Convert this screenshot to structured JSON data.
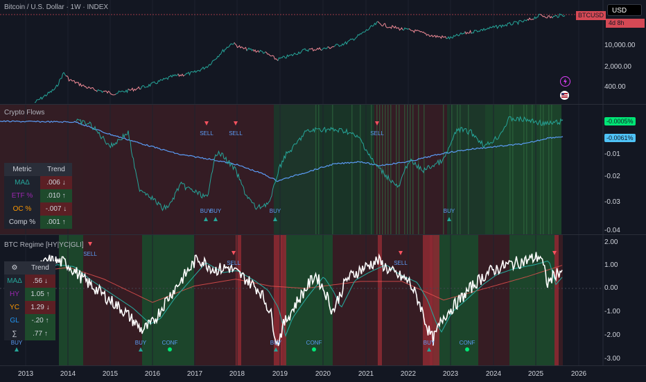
{
  "price_pane": {
    "title": "Bitcoin / U.S. Dollar · 1W · INDEX",
    "currency_button": "USD",
    "symbol_tag": "BTCUSD",
    "countdown": "4d 8h",
    "axis_labels": [
      "10,000.00",
      "2,000.00",
      "400.00"
    ]
  },
  "flows_pane": {
    "title": "Crypto Flows",
    "value_green": "-0.0005%",
    "value_blue": "-0.0061%",
    "axis_labels": [
      "-0.01",
      "-0.02",
      "-0.03",
      "-0.04"
    ],
    "table": {
      "headers": [
        "Metric",
        "Trend"
      ],
      "rows": [
        {
          "metric": "MAΔ",
          "trend": ".006 ↓",
          "metric_color": "#26a69a",
          "trend_bg": "#5b1f24"
        },
        {
          "metric": "ETF %",
          "trend": ".010 ↑",
          "metric_color": "#9c27b0",
          "trend_bg": "#1e4a2c"
        },
        {
          "metric": "OC %",
          "trend": "-.007 ↓",
          "metric_color": "#ff9800",
          "trend_bg": "#5b1f24"
        },
        {
          "metric": "Comp %",
          "trend": ".001 ↑",
          "metric_color": "#d1d4dc",
          "trend_bg": "#1e4a2c"
        }
      ]
    },
    "signals": [
      {
        "label": "SELL",
        "kind": "sell"
      },
      {
        "label": "SELL",
        "kind": "sell"
      },
      {
        "label": "SELL",
        "kind": "sell"
      },
      {
        "label": "BUY",
        "kind": "buy"
      },
      {
        "label": "BUY",
        "kind": "buy"
      },
      {
        "label": "BUY",
        "kind": "buy"
      },
      {
        "label": "BUY",
        "kind": "buy"
      }
    ]
  },
  "regime_pane": {
    "title": "BTC Regime [HY|YC|GLI]",
    "axis_labels": [
      "2.00",
      "1.00",
      "0.00",
      "-1.00",
      "-2.00",
      "-3.00"
    ],
    "table": {
      "header_icon": "gear-icon",
      "header_label": "Trend",
      "rows": [
        {
          "metric": "MAΔ",
          "trend": ".56 ↓",
          "metric_color": "#26a69a",
          "trend_bg": "#5b1f24"
        },
        {
          "metric": "HY",
          "trend": "1.05 ↑",
          "metric_color": "#9c27b0",
          "trend_bg": "#1e4a2c"
        },
        {
          "metric": "YC",
          "trend": "1.29 ↓",
          "metric_color": "#ff9800",
          "trend_bg": "#5b1f24"
        },
        {
          "metric": "GL",
          "trend": "-.20 ↑",
          "metric_color": "#2196f3",
          "trend_bg": "#1e4a2c"
        },
        {
          "metric": "∑",
          "trend": ".77 ↑",
          "metric_color": "#d1d4dc",
          "trend_bg": "#1e4a2c"
        }
      ]
    },
    "signals": [
      {
        "label": "SELL",
        "kind": "sell"
      },
      {
        "label": "SELL",
        "kind": "sell"
      },
      {
        "label": "SELL",
        "kind": "sell"
      },
      {
        "label": "BUY",
        "kind": "buy"
      },
      {
        "label": "BUY",
        "kind": "buy"
      },
      {
        "label": "BUY",
        "kind": "buy"
      },
      {
        "label": "BUY",
        "kind": "buy"
      },
      {
        "label": "CONF",
        "kind": "conf"
      },
      {
        "label": "CONF",
        "kind": "conf"
      },
      {
        "label": "CONF",
        "kind": "conf"
      }
    ]
  },
  "time_axis": [
    "2013",
    "2014",
    "2015",
    "2016",
    "2017",
    "2018",
    "2019",
    "2020",
    "2021",
    "2022",
    "2023",
    "2024",
    "2025",
    "2026"
  ],
  "colors": {
    "background": "#131722",
    "up": "#26a69a",
    "down": "#ef5350",
    "blue_line": "#5b9cf6",
    "accent_red": "#f7525f"
  },
  "icons": [
    "lightning-icon",
    "flag-icon"
  ]
}
